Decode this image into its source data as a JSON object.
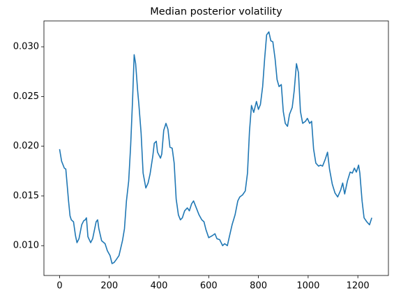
{
  "chart_data": {
    "type": "line",
    "title": "Median posterior volatility",
    "x": [
      0,
      8,
      19,
      25,
      36,
      42,
      47,
      56,
      64,
      70,
      78,
      89,
      97,
      103,
      108,
      114,
      125,
      133,
      147,
      153,
      158,
      169,
      183,
      192,
      203,
      211,
      219,
      228,
      239,
      253,
      261,
      269,
      278,
      286,
      294,
      300,
      306,
      314,
      319,
      328,
      336,
      347,
      356,
      364,
      375,
      381,
      389,
      394,
      406,
      411,
      419,
      428,
      436,
      444,
      453,
      461,
      469,
      478,
      486,
      494,
      503,
      514,
      522,
      531,
      539,
      550,
      561,
      572,
      581,
      589,
      600,
      614,
      625,
      633,
      644,
      656,
      664,
      675,
      683,
      694,
      706,
      717,
      725,
      736,
      747,
      756,
      764,
      772,
      781,
      792,
      800,
      808,
      817,
      825,
      833,
      842,
      850,
      858,
      867,
      875,
      883,
      892,
      900,
      908,
      917,
      925,
      936,
      944,
      953,
      961,
      969,
      978,
      989,
      997,
      1006,
      1014,
      1022,
      1031,
      1042,
      1050,
      1058,
      1069,
      1078,
      1086,
      1097,
      1108,
      1119,
      1131,
      1139,
      1147,
      1158,
      1169,
      1178,
      1186,
      1194,
      1203,
      1208,
      1217,
      1225,
      1236,
      1247,
      1256
    ],
    "series": [
      {
        "color": "#1f77b4",
        "values": [
          0.0197,
          0.0185,
          0.0178,
          0.0177,
          0.0145,
          0.013,
          0.0126,
          0.0124,
          0.011,
          0.0103,
          0.0107,
          0.0121,
          0.0125,
          0.0126,
          0.0128,
          0.0109,
          0.0103,
          0.0107,
          0.0124,
          0.0126,
          0.0117,
          0.0105,
          0.0102,
          0.0095,
          0.009,
          0.0082,
          0.0083,
          0.0086,
          0.009,
          0.0105,
          0.0117,
          0.0145,
          0.0165,
          0.0201,
          0.0249,
          0.0292,
          0.0283,
          0.0256,
          0.0242,
          0.0213,
          0.0173,
          0.0158,
          0.0163,
          0.0172,
          0.019,
          0.0203,
          0.0205,
          0.0194,
          0.0188,
          0.0192,
          0.0216,
          0.0223,
          0.0217,
          0.0199,
          0.0198,
          0.0183,
          0.0147,
          0.0131,
          0.0126,
          0.0128,
          0.0135,
          0.0138,
          0.0135,
          0.0142,
          0.0145,
          0.0138,
          0.0131,
          0.0126,
          0.0124,
          0.0116,
          0.0108,
          0.011,
          0.0112,
          0.0107,
          0.0106,
          0.01,
          0.0102,
          0.01,
          0.0109,
          0.0121,
          0.0131,
          0.0145,
          0.0149,
          0.0151,
          0.0155,
          0.0173,
          0.0215,
          0.0241,
          0.0234,
          0.0245,
          0.0237,
          0.0242,
          0.026,
          0.0288,
          0.0312,
          0.0315,
          0.0306,
          0.0305,
          0.0288,
          0.0267,
          0.026,
          0.0262,
          0.0235,
          0.0223,
          0.022,
          0.0232,
          0.0239,
          0.0256,
          0.0283,
          0.0274,
          0.0235,
          0.0223,
          0.0225,
          0.0228,
          0.0223,
          0.0225,
          0.0197,
          0.0183,
          0.018,
          0.0181,
          0.018,
          0.0187,
          0.0194,
          0.0177,
          0.0162,
          0.0153,
          0.0149,
          0.0156,
          0.0163,
          0.0152,
          0.0165,
          0.0174,
          0.0173,
          0.0178,
          0.0174,
          0.0181,
          0.0173,
          0.0145,
          0.0128,
          0.0124,
          0.0121,
          0.0128
        ]
      }
    ],
    "xlim": [
      -63,
      1323
    ],
    "xticks": [
      0,
      200,
      400,
      600,
      800,
      1000,
      1200
    ],
    "ylim": [
      0.007,
      0.0326
    ],
    "yticks": [
      {
        "value": 0.01,
        "label": "0.010"
      },
      {
        "value": 0.015,
        "label": "0.015"
      },
      {
        "value": 0.02,
        "label": "0.020"
      },
      {
        "value": 0.025,
        "label": "0.025"
      },
      {
        "value": 0.03,
        "label": "0.030"
      }
    ]
  }
}
